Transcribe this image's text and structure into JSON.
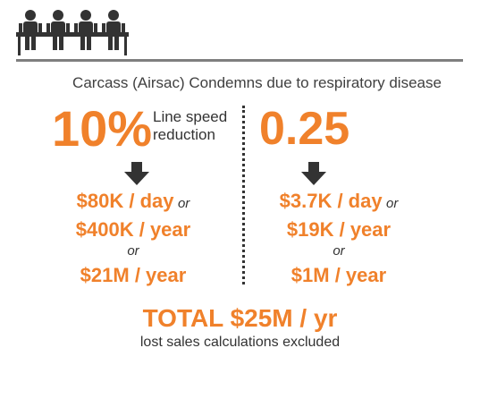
{
  "header": {
    "icon": "workers-at-line-icon",
    "subtitle": "Carcass (Airsac) Condemns due to respiratory disease"
  },
  "left": {
    "headline": "10%",
    "headline_label_1": "Line speed",
    "headline_label_2": "reduction",
    "per_day": "$80K / day",
    "or_1": "or",
    "per_year_1": "$400K / year",
    "or_2": "or",
    "per_year_2": "$21M / year"
  },
  "right": {
    "headline": "0.25",
    "per_day": "$3.7K / day",
    "or_1": "or",
    "per_year_1": "$19K / year",
    "or_2": "or",
    "per_year_2": "$1M / year"
  },
  "footer": {
    "total": "TOTAL $25M / yr",
    "note": "lost sales calculations excluded"
  },
  "colors": {
    "accent": "#f0812b",
    "text": "#333333",
    "rule": "#7f7f7f",
    "icon": "#333333"
  }
}
